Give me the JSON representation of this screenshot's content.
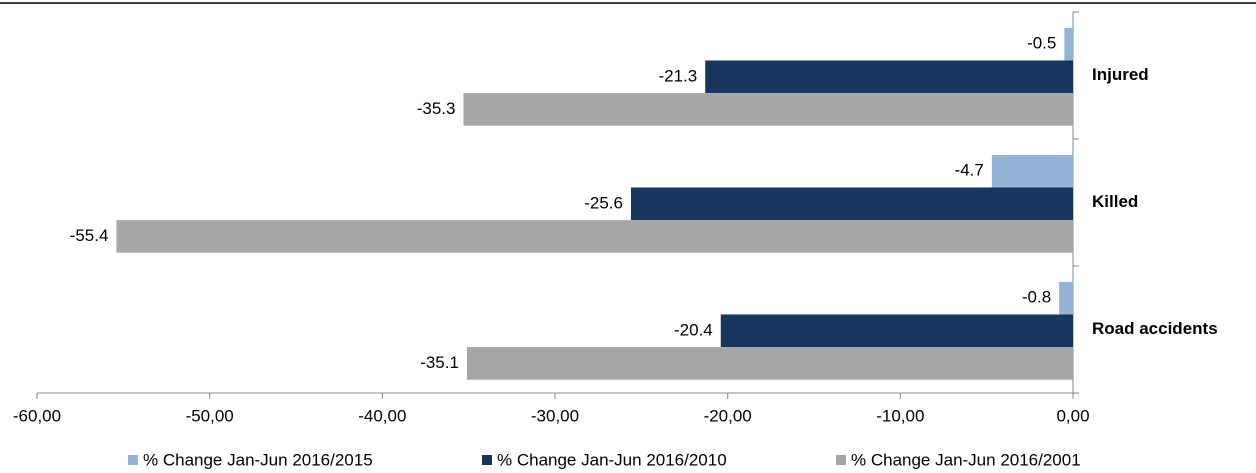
{
  "chart_data": {
    "type": "bar",
    "orientation": "horizontal",
    "categories": [
      "Injured",
      "Killed",
      "Road accidents"
    ],
    "series": [
      {
        "name": "% Change Jan-Jun 2016/2015",
        "color": "#95b3d7",
        "values": [
          -0.5,
          -4.7,
          -0.8
        ]
      },
      {
        "name": "% Change Jan-Jun 2016/2010",
        "color": "#17375e",
        "values": [
          -21.3,
          -25.6,
          -20.4
        ]
      },
      {
        "name": "% Change Jan-Jun 2016/2001",
        "color": "#a6a6a6",
        "values": [
          -35.3,
          -55.4,
          -35.1
        ]
      }
    ],
    "xlim": [
      -60,
      0
    ],
    "xticks": [
      {
        "value": -60,
        "label": "-60,00"
      },
      {
        "value": -50,
        "label": "-50,00"
      },
      {
        "value": -40,
        "label": "-40,00"
      },
      {
        "value": -30,
        "label": "-30,00"
      },
      {
        "value": -20,
        "label": "-20,00"
      },
      {
        "value": -10,
        "label": "-10,00"
      },
      {
        "value": 0,
        "label": "0,00"
      }
    ],
    "legend": "bottom"
  }
}
